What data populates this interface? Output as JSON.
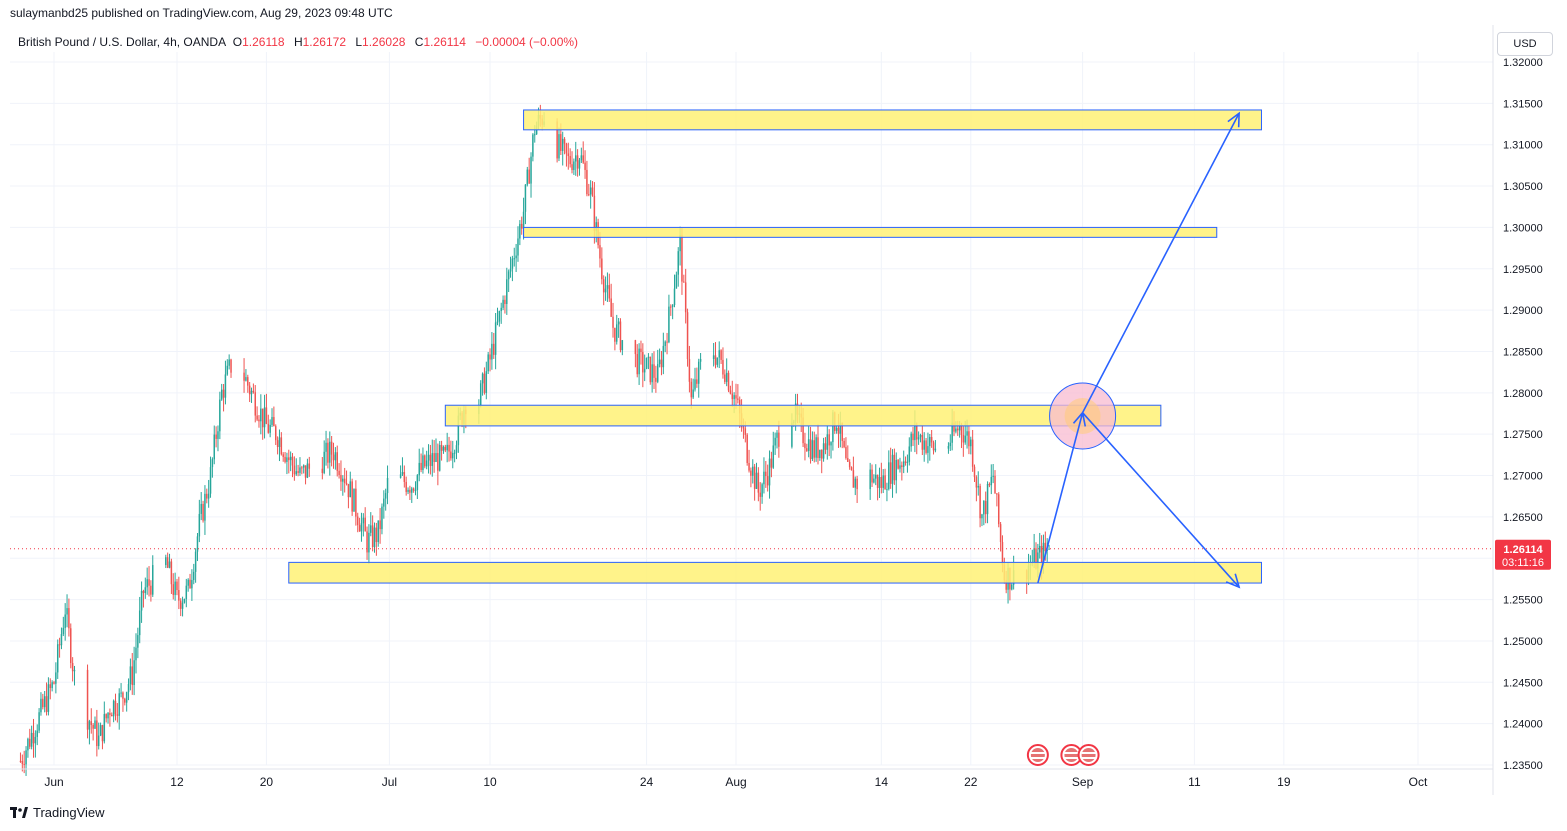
{
  "header": {
    "published_by": "sulaymanbd25 published on TradingView.com, Aug 29, 2023 09:48 UTC"
  },
  "legend": {
    "symbol": "British Pound / U.S. Dollar, 4h, OANDA",
    "o_label": "O",
    "o_value": "1.26118",
    "h_label": "H",
    "h_value": "1.26172",
    "l_label": "L",
    "l_value": "1.26028",
    "c_label": "C",
    "c_value": "1.26114",
    "change": "−0.00004 (−0.00%)"
  },
  "currency_button": "USD",
  "price_badge": {
    "price": "1.26114",
    "countdown": "03:11:16"
  },
  "brand": {
    "name": "TradingView",
    "icon": "tradingview-logo-icon"
  },
  "colors": {
    "up": "#26a69a",
    "down": "#ef5350",
    "zone_fill": "#fff176",
    "zone_border": "#2962ff",
    "arrow": "#2962ff",
    "circle_fill": "#f8bbd0",
    "circle_fill_inner": "#ffcc80",
    "badge": "#f23645"
  },
  "chart_data": {
    "type": "candlestick",
    "timeframe": "4h",
    "ylim": [
      1.235,
      1.32
    ],
    "y_ticks": [
      1.235,
      1.24,
      1.245,
      1.25,
      1.255,
      1.26,
      1.265,
      1.27,
      1.275,
      1.28,
      1.285,
      1.29,
      1.295,
      1.3,
      1.305,
      1.31,
      1.315,
      1.32
    ],
    "y_tick_labels": [
      "1.23500",
      "1.24000",
      "1.24500",
      "1.25000",
      "1.25500",
      "1.26000",
      "1.26500",
      "1.27000",
      "1.27500",
      "1.28000",
      "1.28500",
      "1.29000",
      "1.29500",
      "1.30000",
      "1.30500",
      "1.31000",
      "1.31500",
      "1.32000"
    ],
    "x_ticks": [
      {
        "label": "Jun",
        "date": "2023-06-01"
      },
      {
        "label": "12",
        "date": "2023-06-12"
      },
      {
        "label": "20",
        "date": "2023-06-20"
      },
      {
        "label": "Jul",
        "date": "2023-07-01"
      },
      {
        "label": "10",
        "date": "2023-07-10"
      },
      {
        "label": "24",
        "date": "2023-07-24"
      },
      {
        "label": "Aug",
        "date": "2023-08-01"
      },
      {
        "label": "14",
        "date": "2023-08-14"
      },
      {
        "label": "22",
        "date": "2023-08-22"
      },
      {
        "label": "Sep",
        "date": "2023-09-01"
      },
      {
        "label": "11",
        "date": "2023-09-11"
      },
      {
        "label": "19",
        "date": "2023-09-19"
      },
      {
        "label": "Oct",
        "date": "2023-10-01"
      }
    ],
    "close_path": [
      [
        "2023-05-29",
        1.2355
      ],
      [
        "2023-06-01",
        1.245
      ],
      [
        "2023-06-02",
        1.254
      ],
      [
        "2023-06-03",
        1.244
      ],
      [
        "2023-06-05",
        1.238
      ],
      [
        "2023-06-06",
        1.242
      ],
      [
        "2023-06-07",
        1.243
      ],
      [
        "2023-06-08",
        1.246
      ],
      [
        "2023-06-09",
        1.256
      ],
      [
        "2023-06-11",
        1.2595
      ],
      [
        "2023-06-12",
        1.255
      ],
      [
        "2023-06-13",
        1.256
      ],
      [
        "2023-06-14",
        1.264
      ],
      [
        "2023-06-15",
        1.27
      ],
      [
        "2023-06-16",
        1.28
      ],
      [
        "2023-06-17",
        1.284
      ],
      [
        "2023-06-18",
        1.282
      ],
      [
        "2023-06-20",
        1.276
      ],
      [
        "2023-06-21",
        1.275
      ],
      [
        "2023-06-22",
        1.272
      ],
      [
        "2023-06-23",
        1.27
      ],
      [
        "2023-06-25",
        1.272
      ],
      [
        "2023-06-26",
        1.273
      ],
      [
        "2023-06-27",
        1.27
      ],
      [
        "2023-06-28",
        1.266
      ],
      [
        "2023-06-29",
        1.262
      ],
      [
        "2023-06-30",
        1.263
      ],
      [
        "2023-07-01",
        1.27
      ],
      [
        "2023-07-03",
        1.269
      ],
      [
        "2023-07-04",
        1.271
      ],
      [
        "2023-07-05",
        1.272
      ],
      [
        "2023-07-06",
        1.272
      ],
      [
        "2023-07-07",
        1.275
      ],
      [
        "2023-07-08",
        1.28
      ],
      [
        "2023-07-09",
        1.279
      ],
      [
        "2023-07-10",
        1.284
      ],
      [
        "2023-07-11",
        1.29
      ],
      [
        "2023-07-12",
        1.296
      ],
      [
        "2023-07-13",
        1.302
      ],
      [
        "2023-07-14",
        1.312
      ],
      [
        "2023-07-15",
        1.314
      ],
      [
        "2023-07-16",
        1.31
      ],
      [
        "2023-07-17",
        1.308
      ],
      [
        "2023-07-18",
        1.309
      ],
      [
        "2023-07-19",
        1.304
      ],
      [
        "2023-07-20",
        1.295
      ],
      [
        "2023-07-21",
        1.288
      ],
      [
        "2023-07-22",
        1.286
      ],
      [
        "2023-07-23",
        1.284
      ],
      [
        "2023-07-24",
        1.283
      ],
      [
        "2023-07-25",
        1.282
      ],
      [
        "2023-07-26",
        1.289
      ],
      [
        "2023-07-27",
        1.298
      ],
      [
        "2023-07-28",
        1.279
      ],
      [
        "2023-07-29",
        1.284
      ],
      [
        "2023-07-30",
        1.285
      ],
      [
        "2023-07-31",
        1.283
      ],
      [
        "2023-08-01",
        1.279
      ],
      [
        "2023-08-02",
        1.273
      ],
      [
        "2023-08-03",
        1.268
      ],
      [
        "2023-08-04",
        1.271
      ],
      [
        "2023-08-05",
        1.276
      ],
      [
        "2023-08-06",
        1.278
      ],
      [
        "2023-08-07",
        1.275
      ],
      [
        "2023-08-08",
        1.273
      ],
      [
        "2023-08-09",
        1.274
      ],
      [
        "2023-08-10",
        1.277
      ],
      [
        "2023-08-11",
        1.27
      ],
      [
        "2023-08-12",
        1.269
      ],
      [
        "2023-08-13",
        1.27
      ],
      [
        "2023-08-14",
        1.269
      ],
      [
        "2023-08-15",
        1.271
      ],
      [
        "2023-08-16",
        1.272
      ],
      [
        "2023-08-17",
        1.275
      ],
      [
        "2023-08-18",
        1.274
      ],
      [
        "2023-08-19",
        1.273
      ],
      [
        "2023-08-20",
        1.274
      ],
      [
        "2023-08-21",
        1.276
      ],
      [
        "2023-08-22",
        1.274
      ],
      [
        "2023-08-23",
        1.265
      ],
      [
        "2023-08-24",
        1.27
      ],
      [
        "2023-08-25",
        1.258
      ],
      [
        "2023-08-26",
        1.2575
      ],
      [
        "2023-08-27",
        1.259
      ],
      [
        "2023-08-28",
        1.26
      ],
      [
        "2023-08-29",
        1.26114
      ]
    ],
    "current_price": 1.26114,
    "zones": [
      {
        "from": "2023-07-13",
        "to": "2023-09-17",
        "top": 1.3142,
        "bottom": 1.3118
      },
      {
        "from": "2023-07-13",
        "to": "2023-09-13",
        "top": 1.3,
        "bottom": 1.2988
      },
      {
        "from": "2023-07-06",
        "to": "2023-09-08",
        "top": 1.2785,
        "bottom": 1.276
      },
      {
        "from": "2023-06-22",
        "to": "2023-09-17",
        "top": 1.2595,
        "bottom": 1.257
      }
    ],
    "arrows": [
      {
        "from": [
          "2023-08-28",
          1.257
        ],
        "to": [
          "2023-09-01",
          1.2776
        ]
      },
      {
        "from": [
          "2023-09-01",
          1.2776
        ],
        "to": [
          "2023-09-15",
          1.3138
        ]
      },
      {
        "from": [
          "2023-09-01",
          1.2776
        ],
        "to": [
          "2023-09-15",
          1.2565
        ]
      }
    ],
    "circle": {
      "center": [
        "2023-09-01",
        1.2772
      ]
    },
    "event_icons": [
      {
        "date": "2023-08-28",
        "icon": "us-flag-event-icon"
      },
      {
        "date": "2023-08-31",
        "icon": "us-flag-event-icon"
      },
      {
        "date": "2023-09-01",
        "icon": "us-flag-event-icon"
      }
    ],
    "grid": true,
    "legend_position": "top-left"
  }
}
